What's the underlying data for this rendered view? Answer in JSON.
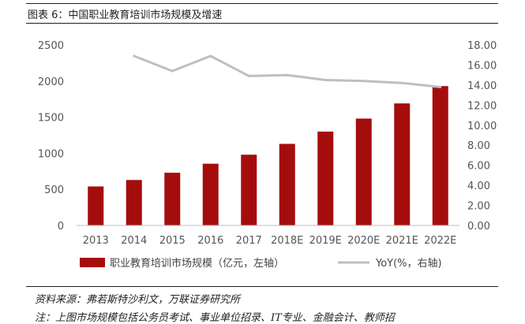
{
  "figure": {
    "title": "图表 6：中国职业教育培训市场规模及增速",
    "source": "资料来源：弗若斯特沙利文，万联证券研究所",
    "note": "注：上图市场规模包括公务员考试、事业单位招录、IT专业、金融会计、教师招"
  },
  "chart_data": {
    "type": "bar",
    "categories": [
      "2013",
      "2014",
      "2015",
      "2016",
      "2017",
      "2018E",
      "2019E",
      "2020E",
      "2021E",
      "2022E"
    ],
    "series": [
      {
        "name": "职业教育培训市场规模（亿元，左轴）",
        "type": "bar",
        "axis": "left",
        "color": "#a50d0d",
        "values": [
          540,
          630,
          730,
          855,
          980,
          1130,
          1300,
          1480,
          1690,
          1930
        ]
      },
      {
        "name": "YoY(%，右轴)",
        "type": "line",
        "axis": "right",
        "color": "#bfbfbf",
        "values": [
          null,
          16.9,
          15.4,
          16.9,
          14.9,
          15.0,
          14.5,
          14.4,
          14.2,
          13.8
        ]
      }
    ],
    "ylim_left": [
      0,
      2500
    ],
    "yticks_left": [
      "0",
      "500",
      "1000",
      "1500",
      "2000",
      "2500"
    ],
    "ylim_right": [
      0,
      18
    ],
    "yticks_right": [
      "0.00",
      "2.00",
      "4.00",
      "6.00",
      "8.00",
      "10.00",
      "12.00",
      "14.00",
      "16.00",
      "18.00"
    ],
    "grid": false,
    "legend_position": "bottom"
  }
}
